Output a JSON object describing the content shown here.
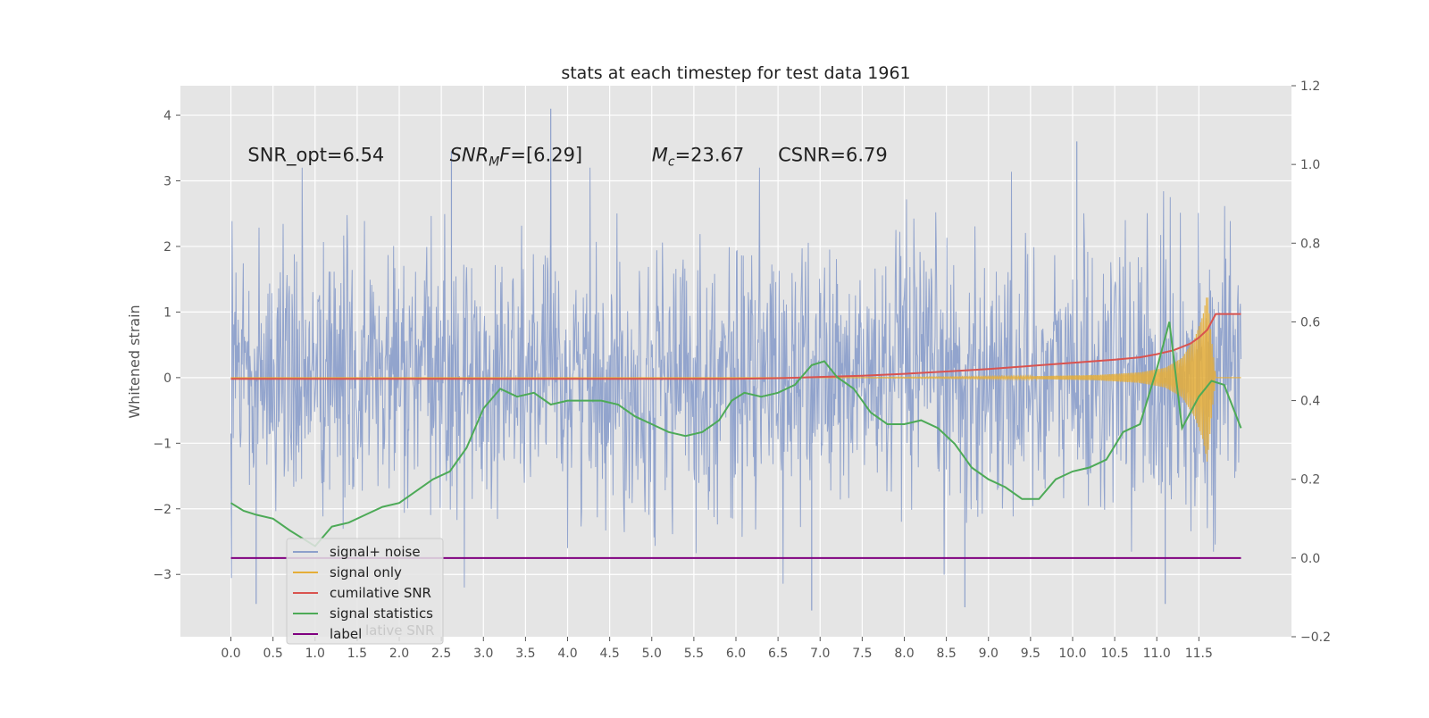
{
  "chart_data": {
    "type": "line",
    "title": "stats at each timestep for test data 1961",
    "ylabel": "Whitened strain",
    "xlabel": "",
    "xlim": [
      -0.6,
      12.6
    ],
    "ylim": [
      -3.95,
      4.45
    ],
    "y2lim": [
      -0.2,
      1.2
    ],
    "grid": true,
    "legend_position": "lower-left",
    "legend_ghost_text": "lative SNR",
    "x_tick_labels": [
      "0.0",
      "0.5",
      "1.0",
      "1.5",
      "2.0",
      "2.5",
      "3.0",
      "3.5",
      "4.0",
      "4.5",
      "5.0",
      "5.5",
      "6.0",
      "6.5",
      "7.0",
      "7.5",
      "8.0",
      "8.5",
      "9.0",
      "9.5",
      "10.0",
      "10.5",
      "11.0",
      "11.5"
    ],
    "y_tick_labels": [
      "4",
      "3",
      "2",
      "1",
      "0",
      "−1",
      "−2",
      "−3"
    ],
    "y_ticks": [
      4,
      3,
      2,
      1,
      0,
      -1,
      -2,
      -3
    ],
    "y2_tick_labels": [
      "1.2",
      "1.0",
      "0.8",
      "0.6",
      "0.4",
      "0.2",
      "0.0",
      "−0.2"
    ],
    "y2_ticks": [
      1.2,
      1.0,
      0.8,
      0.6,
      0.4,
      0.2,
      0.0,
      -0.2
    ],
    "annotations": [
      {
        "text": "SNR_opt=6.54",
        "x": 0.2,
        "y": 3.3
      },
      {
        "text": "SNR_MF=[6.29]",
        "x": 2.6,
        "y": 3.3
      },
      {
        "text": "M_c=23.67",
        "x": 5.0,
        "y": 3.3
      },
      {
        "text": "CSNR=6.79",
        "x": 6.5,
        "y": 3.3
      }
    ],
    "series": [
      {
        "name": "signal+ noise",
        "color": "#8da0cb",
        "axis": "left",
        "x_range": [
          0.0,
          12.0
        ],
        "noise_std": 1.0,
        "spikes": [
          {
            "x": 3.8,
            "y": 4.1
          },
          {
            "x": 10.05,
            "y": 3.6
          },
          {
            "x": 2.62,
            "y": 3.45
          },
          {
            "x": 6.9,
            "y": -3.55
          },
          {
            "x": 8.72,
            "y": -3.5
          },
          {
            "x": 0.3,
            "y": -3.45
          },
          {
            "x": 11.1,
            "y": -3.45
          }
        ]
      },
      {
        "name": "signal only",
        "color": "#e5ae38",
        "axis": "left",
        "x": [
          0,
          7.0,
          8.5,
          9.5,
          10.3,
          10.8,
          11.1,
          11.3,
          11.45,
          11.55,
          11.6,
          11.65,
          11.7,
          12.0
        ],
        "envelope": [
          0,
          0,
          0.01,
          0.02,
          0.04,
          0.08,
          0.15,
          0.3,
          0.6,
          0.95,
          1.3,
          0.6,
          0.0,
          0.0
        ]
      },
      {
        "name": "cumilative SNR",
        "color": "#d9534f",
        "axis": "right",
        "x": [
          0,
          6.0,
          6.5,
          7.0,
          7.5,
          8.0,
          8.5,
          9.0,
          9.5,
          10.0,
          10.5,
          10.8,
          11.0,
          11.2,
          11.4,
          11.5,
          11.6,
          11.7,
          12.0
        ],
        "values": [
          0.455,
          0.455,
          0.457,
          0.46,
          0.463,
          0.468,
          0.474,
          0.48,
          0.488,
          0.496,
          0.504,
          0.51,
          0.518,
          0.528,
          0.545,
          0.56,
          0.58,
          0.62,
          0.62
        ]
      },
      {
        "name": "signal statistics",
        "color": "#4daa57",
        "axis": "right",
        "x": [
          0,
          0.15,
          0.3,
          0.5,
          0.7,
          0.85,
          1.0,
          1.2,
          1.4,
          1.6,
          1.8,
          2.0,
          2.2,
          2.4,
          2.6,
          2.8,
          3.0,
          3.2,
          3.4,
          3.6,
          3.8,
          4.0,
          4.2,
          4.4,
          4.6,
          4.8,
          5.0,
          5.2,
          5.4,
          5.6,
          5.8,
          5.95,
          6.1,
          6.3,
          6.5,
          6.7,
          6.9,
          7.05,
          7.2,
          7.4,
          7.6,
          7.8,
          8.0,
          8.2,
          8.4,
          8.6,
          8.8,
          9.0,
          9.2,
          9.4,
          9.6,
          9.8,
          10.0,
          10.2,
          10.4,
          10.6,
          10.8,
          11.0,
          11.15,
          11.3,
          11.5,
          11.65,
          11.8,
          12.0
        ],
        "values": [
          0.14,
          0.12,
          0.11,
          0.1,
          0.07,
          0.05,
          0.03,
          0.08,
          0.09,
          0.11,
          0.13,
          0.14,
          0.17,
          0.2,
          0.22,
          0.28,
          0.38,
          0.43,
          0.41,
          0.42,
          0.39,
          0.4,
          0.4,
          0.4,
          0.39,
          0.36,
          0.34,
          0.32,
          0.31,
          0.32,
          0.35,
          0.4,
          0.42,
          0.41,
          0.42,
          0.44,
          0.49,
          0.5,
          0.46,
          0.43,
          0.37,
          0.34,
          0.34,
          0.35,
          0.33,
          0.29,
          0.23,
          0.2,
          0.18,
          0.15,
          0.15,
          0.2,
          0.22,
          0.23,
          0.25,
          0.32,
          0.34,
          0.48,
          0.6,
          0.33,
          0.41,
          0.45,
          0.44,
          0.33
        ]
      },
      {
        "name": "label",
        "color": "#800080",
        "axis": "right",
        "x": [
          0,
          12.0
        ],
        "values": [
          0.0,
          0.0
        ]
      }
    ]
  }
}
